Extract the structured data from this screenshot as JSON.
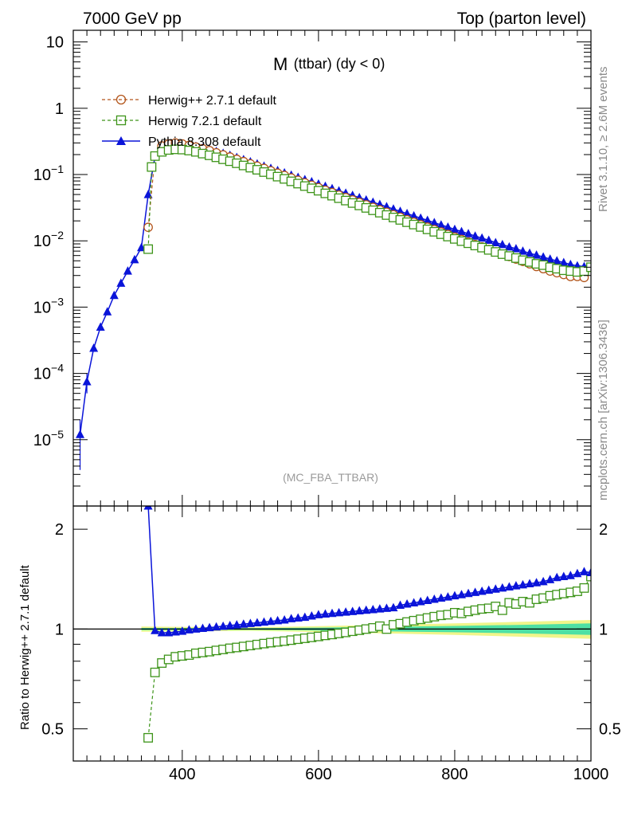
{
  "header": {
    "left": "7000 GeV pp",
    "right": "Top (parton level)"
  },
  "side_labels": {
    "rivet": "Rivet 3.1.10, ≥ 2.6M events",
    "mcplots": "mcplots.cern.ch [arXiv:1306.3436]"
  },
  "plot_title": {
    "main": "M",
    "sub": "(ttbar) (dy < 0)"
  },
  "analysis_label": "(MC_FBA_TTBAR)",
  "ratio_ylabel": "Ratio to Herwig++ 2.7.1 default",
  "colors": {
    "herwigpp": "#b3561c",
    "herwig7": "#3d9419",
    "pythia": "#0a14d9",
    "band_inner": "#4ee0a4",
    "band_outer": "#f0f58a"
  },
  "chart_data": {
    "type": "line",
    "xlim": [
      240,
      1000
    ],
    "main_panel": {
      "yscale": "log",
      "ylim": [
        1e-06,
        15
      ],
      "ytick_labels": [
        "10",
        "1",
        "10^-1",
        "10^-2",
        "10^-3",
        "10^-4",
        "10^-5"
      ],
      "series": [
        {
          "name": "Herwig++ 2.7.1 default",
          "style": "dashed, open circle",
          "x": [
            350,
            360,
            370,
            380,
            390,
            400,
            410,
            420,
            430,
            440,
            450,
            460,
            470,
            480,
            490,
            500,
            510,
            520,
            530,
            540,
            550,
            560,
            570,
            580,
            590,
            600,
            610,
            620,
            630,
            640,
            650,
            660,
            670,
            680,
            690,
            700,
            710,
            720,
            730,
            740,
            750,
            760,
            770,
            780,
            790,
            800,
            810,
            820,
            830,
            840,
            850,
            860,
            870,
            880,
            890,
            900,
            910,
            920,
            930,
            940,
            950,
            960,
            970,
            980,
            990
          ],
          "y": [
            0.016,
            0.19,
            0.27,
            0.29,
            0.3,
            0.29,
            0.275,
            0.26,
            0.245,
            0.23,
            0.213,
            0.198,
            0.184,
            0.17,
            0.157,
            0.145,
            0.134,
            0.124,
            0.114,
            0.105,
            0.097,
            0.089,
            0.082,
            0.075,
            0.069,
            0.0635,
            0.058,
            0.0535,
            0.049,
            0.045,
            0.0414,
            0.038,
            0.035,
            0.032,
            0.0294,
            0.027,
            0.0248,
            0.0227,
            0.0208,
            0.0191,
            0.0175,
            0.0161,
            0.0148,
            0.0136,
            0.0125,
            0.0114,
            0.0105,
            0.0096,
            0.0088,
            0.0081,
            0.0074,
            0.0068,
            0.0063,
            0.0058,
            0.0053,
            0.0049,
            0.0045,
            0.0041,
            0.0038,
            0.0035,
            0.0033,
            0.0031,
            0.0029,
            0.0029,
            0.0028
          ]
        },
        {
          "name": "Herwig 7.2.1 default",
          "style": "dashed, open square",
          "x": [
            350,
            355,
            360,
            370,
            380,
            390,
            400,
            410,
            420,
            430,
            440,
            450,
            460,
            470,
            480,
            490,
            500,
            510,
            520,
            530,
            540,
            550,
            560,
            570,
            580,
            590,
            600,
            610,
            620,
            630,
            640,
            650,
            660,
            670,
            680,
            690,
            700,
            710,
            720,
            730,
            740,
            750,
            760,
            770,
            780,
            790,
            800,
            810,
            820,
            830,
            840,
            850,
            860,
            870,
            880,
            890,
            900,
            910,
            920,
            930,
            940,
            950,
            960,
            970,
            980,
            990,
            1000
          ],
          "y": [
            0.0075,
            0.13,
            0.19,
            0.22,
            0.235,
            0.24,
            0.238,
            0.23,
            0.22,
            0.207,
            0.195,
            0.182,
            0.17,
            0.159,
            0.148,
            0.137,
            0.127,
            0.118,
            0.109,
            0.101,
            0.093,
            0.086,
            0.079,
            0.073,
            0.067,
            0.062,
            0.057,
            0.052,
            0.048,
            0.044,
            0.0405,
            0.0372,
            0.0342,
            0.0314,
            0.0289,
            0.0266,
            0.0245,
            0.0225,
            0.0207,
            0.0191,
            0.0176,
            0.0162,
            0.0149,
            0.0137,
            0.0126,
            0.0116,
            0.0107,
            0.0099,
            0.0092,
            0.0085,
            0.0079,
            0.0073,
            0.0068,
            0.0063,
            0.0059,
            0.0055,
            0.0051,
            0.0048,
            0.0045,
            0.0043,
            0.004,
            0.0038,
            0.0036,
            0.0035,
            0.0034,
            0.0035,
            0.004
          ]
        },
        {
          "name": "Pythia 8.308 default",
          "style": "solid, filled triangle",
          "x": [
            250,
            260,
            270,
            280,
            290,
            300,
            310,
            320,
            330,
            340,
            350,
            360,
            370,
            380,
            390,
            400,
            410,
            420,
            430,
            440,
            450,
            460,
            470,
            480,
            490,
            500,
            510,
            520,
            530,
            540,
            550,
            560,
            570,
            580,
            590,
            600,
            610,
            620,
            630,
            640,
            650,
            660,
            670,
            680,
            690,
            700,
            710,
            720,
            730,
            740,
            750,
            760,
            770,
            780,
            790,
            800,
            810,
            820,
            830,
            840,
            850,
            860,
            870,
            880,
            890,
            900,
            910,
            920,
            930,
            940,
            950,
            960,
            970,
            980,
            990,
            1000
          ],
          "y": [
            1.2e-05,
            7.5e-05,
            0.00024,
            0.0005,
            0.00085,
            0.0015,
            0.0023,
            0.0035,
            0.0052,
            0.0079,
            0.05,
            0.185,
            0.265,
            0.285,
            0.29,
            0.287,
            0.278,
            0.266,
            0.252,
            0.238,
            0.223,
            0.209,
            0.195,
            0.181,
            0.168,
            0.156,
            0.145,
            0.134,
            0.124,
            0.115,
            0.106,
            0.098,
            0.091,
            0.084,
            0.078,
            0.072,
            0.0665,
            0.0615,
            0.0568,
            0.0525,
            0.0485,
            0.0448,
            0.0414,
            0.0383,
            0.0354,
            0.0327,
            0.0302,
            0.0279,
            0.0258,
            0.0238,
            0.022,
            0.0204,
            0.0188,
            0.0174,
            0.0161,
            0.0149,
            0.0138,
            0.0128,
            0.0118,
            0.011,
            0.0102,
            0.0094,
            0.0088,
            0.0081,
            0.0076,
            0.007,
            0.0065,
            0.0061,
            0.0057,
            0.0053,
            0.005,
            0.0047,
            0.0044,
            0.0042,
            0.0041,
            0.004
          ]
        }
      ]
    },
    "ratio_panel": {
      "ylabel": "Ratio to Herwig++ 2.7.1 default",
      "yscale": "log",
      "ylim": [
        0.4,
        2.35
      ],
      "ytick_labels": [
        "2",
        "1",
        "0.5"
      ],
      "reference_line": 1,
      "uncertainty_band": {
        "x": [
          340,
          500,
          600,
          700,
          800,
          900,
          1000
        ],
        "inner_half_width": [
          0.008,
          0.006,
          0.01,
          0.016,
          0.022,
          0.03,
          0.04
        ],
        "outer_half_width": [
          0.018,
          0.012,
          0.02,
          0.03,
          0.04,
          0.052,
          0.065
        ]
      },
      "series": [
        {
          "name": "Herwig 7.2.1 default",
          "x": [
            350,
            360,
            370,
            380,
            390,
            400,
            410,
            420,
            430,
            440,
            450,
            460,
            470,
            480,
            490,
            500,
            510,
            520,
            530,
            540,
            550,
            560,
            570,
            580,
            590,
            600,
            610,
            620,
            630,
            640,
            650,
            660,
            670,
            680,
            690,
            700,
            710,
            720,
            730,
            740,
            750,
            760,
            770,
            780,
            790,
            800,
            810,
            820,
            830,
            840,
            850,
            860,
            870,
            880,
            890,
            900,
            910,
            920,
            930,
            940,
            950,
            960,
            970,
            980,
            990,
            1000
          ],
          "y": [
            0.47,
            0.74,
            0.79,
            0.81,
            0.825,
            0.83,
            0.835,
            0.845,
            0.85,
            0.855,
            0.862,
            0.868,
            0.875,
            0.88,
            0.886,
            0.892,
            0.898,
            0.904,
            0.91,
            0.915,
            0.92,
            0.926,
            0.932,
            0.938,
            0.944,
            0.95,
            0.957,
            0.963,
            0.97,
            0.977,
            0.985,
            0.992,
            1.0,
            1.008,
            1.02,
            1.0,
            1.03,
            1.038,
            1.05,
            1.06,
            1.07,
            1.08,
            1.09,
            1.1,
            1.105,
            1.12,
            1.115,
            1.13,
            1.14,
            1.15,
            1.155,
            1.17,
            1.14,
            1.2,
            1.19,
            1.21,
            1.2,
            1.23,
            1.24,
            1.26,
            1.27,
            1.28,
            1.29,
            1.3,
            1.33,
            1.44
          ]
        },
        {
          "name": "Pythia 8.308 default",
          "x": [
            350,
            360,
            370,
            380,
            390,
            400,
            410,
            420,
            430,
            440,
            450,
            460,
            470,
            480,
            490,
            500,
            510,
            520,
            530,
            540,
            550,
            560,
            570,
            580,
            590,
            600,
            610,
            620,
            630,
            640,
            650,
            660,
            670,
            680,
            690,
            700,
            710,
            720,
            730,
            740,
            750,
            760,
            770,
            780,
            790,
            800,
            810,
            820,
            830,
            840,
            850,
            860,
            870,
            880,
            890,
            900,
            910,
            920,
            930,
            940,
            950,
            960,
            970,
            980,
            990,
            1000
          ],
          "y": [
            2.35,
            0.99,
            0.975,
            0.975,
            0.98,
            0.985,
            0.995,
            1.0,
            1.005,
            1.01,
            1.015,
            1.02,
            1.025,
            1.03,
            1.035,
            1.04,
            1.045,
            1.05,
            1.055,
            1.06,
            1.065,
            1.075,
            1.08,
            1.085,
            1.095,
            1.105,
            1.11,
            1.115,
            1.12,
            1.125,
            1.13,
            1.135,
            1.14,
            1.145,
            1.15,
            1.155,
            1.16,
            1.18,
            1.19,
            1.2,
            1.21,
            1.22,
            1.23,
            1.24,
            1.25,
            1.26,
            1.27,
            1.28,
            1.29,
            1.3,
            1.31,
            1.32,
            1.33,
            1.34,
            1.35,
            1.36,
            1.37,
            1.38,
            1.39,
            1.41,
            1.43,
            1.44,
            1.45,
            1.47,
            1.49,
            1.48
          ]
        }
      ]
    },
    "xtick_labels": [
      "400",
      "600",
      "800",
      "1000"
    ]
  }
}
